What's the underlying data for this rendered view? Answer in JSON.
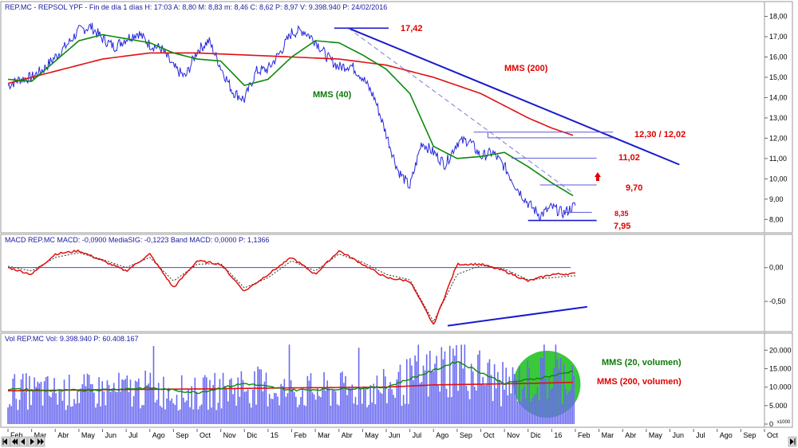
{
  "colors": {
    "price": "#2828e0",
    "ma40": "#0a8a0a",
    "ma200": "#e01010",
    "trend": "#1a1acc",
    "macd": "#e01010",
    "signal": "#333333",
    "volume": "#6a6af0",
    "zone": "#2ec62e",
    "level": "#5a5ad8",
    "panel_border": "#9a9a9a",
    "band": "#4040ff"
  },
  "nav_icons": [
    "first-icon",
    "prev-page-icon",
    "prev-icon",
    "next-icon",
    "next-page-icon",
    "last-icon"
  ],
  "chart_data": [
    {
      "type": "line",
      "title": "REP.MC - REPSOL YPF - Fin de día 1 días H: 17:03 A: 8,80 M: 8,83 m: 8,46 C: 8,62 P: 8,97 V: 9.398.940 P: 24/02/2016",
      "ylim": [
        7.5,
        18.1
      ],
      "y_ticks": [
        "18,00",
        "17,00",
        "16,00",
        "15,00",
        "14,00",
        "13,00",
        "12,00",
        "11,00",
        "10,00",
        "9,00",
        "8,00"
      ],
      "y_tick_values": [
        18,
        17,
        16,
        15,
        14,
        13,
        12,
        11,
        10,
        9,
        8
      ],
      "x_labels": [
        "Feb",
        "Mar",
        "Abr",
        "May",
        "Jun",
        "Jul",
        "Ago",
        "Sep",
        "Oct",
        "Nov",
        "Dic",
        "15",
        "Feb",
        "Mar",
        "Abr",
        "May",
        "Jun",
        "Jul",
        "Ago",
        "Sep",
        "Oct",
        "Nov",
        "Dic",
        "16",
        "Feb",
        "Mar",
        "Abr",
        "May",
        "Jun",
        "Jul",
        "Ago",
        "Sep",
        "Oct"
      ],
      "x_range": [
        0,
        32
      ],
      "series": [
        {
          "name": "price",
          "x": [
            0,
            0.5,
            1,
            1.5,
            2,
            2.5,
            3,
            3.5,
            4,
            4.5,
            5,
            5.5,
            6,
            6.5,
            7,
            7.5,
            8,
            8.5,
            9,
            9.5,
            10,
            10.5,
            11,
            11.5,
            12,
            12.5,
            13,
            13.5,
            14,
            14.5,
            15,
            15.5,
            16,
            16.5,
            17,
            17.5,
            18,
            18.5,
            19,
            19.5,
            20,
            20.5,
            21,
            21.5,
            22,
            22.5,
            23,
            23.5,
            24
          ],
          "y": [
            14.6,
            14.9,
            15.0,
            15.4,
            16.0,
            16.6,
            17.3,
            17.5,
            16.9,
            16.5,
            16.9,
            17.2,
            16.6,
            16.4,
            15.5,
            15.0,
            16.3,
            16.8,
            15.5,
            14.3,
            13.9,
            15.3,
            15.4,
            16.2,
            17.2,
            17.3,
            16.8,
            16.0,
            15.5,
            15.6,
            15.0,
            14.0,
            12.2,
            10.4,
            9.6,
            11.8,
            11.3,
            10.7,
            11.8,
            11.9,
            11.1,
            11.3,
            10.6,
            9.6,
            8.8,
            8.2,
            8.6,
            8.3,
            8.7
          ]
        },
        {
          "name": "MMS (40)",
          "x": [
            0,
            1,
            2,
            3,
            4,
            5,
            6,
            7,
            8,
            9,
            10,
            11,
            12,
            13,
            14,
            15,
            16,
            17,
            18,
            19,
            20,
            21,
            22,
            23,
            24
          ],
          "y": [
            14.9,
            14.8,
            15.8,
            16.8,
            17.1,
            16.9,
            16.7,
            16.2,
            15.9,
            15.8,
            14.6,
            14.9,
            16.0,
            16.8,
            16.7,
            16.1,
            15.4,
            14.2,
            11.6,
            11.0,
            11.1,
            11.3,
            10.6,
            9.8,
            9.1
          ]
        },
        {
          "name": "MMS (200)",
          "x": [
            0,
            2,
            4,
            6,
            8,
            10,
            12,
            14,
            16,
            17,
            18,
            19,
            20,
            21,
            22,
            23,
            24
          ],
          "y": [
            14.7,
            15.3,
            15.9,
            16.2,
            16.2,
            16.1,
            16.0,
            15.9,
            15.6,
            15.3,
            15.0,
            14.6,
            14.2,
            13.6,
            13.0,
            12.5,
            12.1
          ]
        }
      ],
      "levels": [
        {
          "label": "17,42",
          "value": 17.42
        },
        {
          "label": "12,30 / 12,02",
          "value": 12.3,
          "value2": 12.02
        },
        {
          "label": "11,02",
          "value": 11.02
        },
        {
          "label": "9,70",
          "value": 9.7
        },
        {
          "label": "8,35",
          "value": 8.35
        },
        {
          "label": "7,95",
          "value": 7.95
        }
      ],
      "annotations": [
        {
          "text": "MMS (200)",
          "color": "red"
        },
        {
          "text": "MMS (40)",
          "color": "green"
        }
      ]
    },
    {
      "type": "line",
      "title": "MACD REP.MC MACD: -0,0900 MediaSIG: -0,1223 Band MACD: 0,0000 P: 1,1366",
      "ylim": [
        -0.9,
        0.35
      ],
      "y_ticks": [
        "0,00",
        "-0,50"
      ],
      "y_tick_values": [
        0,
        -0.5
      ],
      "band": 0,
      "series": [
        {
          "name": "MACD",
          "x": [
            0,
            1,
            2,
            3,
            4,
            5,
            6,
            7,
            8,
            9,
            10,
            11,
            12,
            13,
            14,
            15,
            16,
            17,
            18,
            19,
            20,
            21,
            22,
            23,
            24
          ],
          "y": [
            0.0,
            -0.1,
            0.2,
            0.25,
            0.1,
            -0.05,
            0.2,
            -0.3,
            0.1,
            0.05,
            -0.35,
            -0.1,
            0.15,
            -0.1,
            0.25,
            0.05,
            -0.15,
            -0.2,
            -0.85,
            0.05,
            0.05,
            -0.05,
            -0.2,
            -0.1,
            -0.09
          ]
        },
        {
          "name": "MediaSIG",
          "x": [
            0,
            1,
            2,
            3,
            4,
            5,
            6,
            7,
            8,
            9,
            10,
            11,
            12,
            13,
            14,
            15,
            16,
            17,
            18,
            19,
            20,
            21,
            22,
            23,
            24
          ],
          "y": [
            0.02,
            -0.05,
            0.15,
            0.22,
            0.12,
            0.0,
            0.15,
            -0.2,
            0.05,
            0.06,
            -0.3,
            -0.15,
            0.1,
            -0.05,
            0.2,
            0.08,
            -0.1,
            -0.18,
            -0.8,
            -0.1,
            0.03,
            -0.02,
            -0.18,
            -0.15,
            -0.12
          ]
        }
      ]
    },
    {
      "type": "bar",
      "title": "Vol REP.MC Vol: 9.398.940 P: 60.408.167",
      "ylim": [
        0,
        22000
      ],
      "y_ticks": [
        "20.000",
        "15.000",
        "10.000",
        "5.000",
        "0"
      ],
      "y_tick_values": [
        20000,
        15000,
        10000,
        5000,
        0
      ],
      "y_unit": "x1000",
      "series": [
        {
          "name": "MMS (20, volumen)",
          "x": [
            0,
            2,
            4,
            6,
            8,
            10,
            12,
            14,
            16,
            18,
            19,
            20,
            21,
            22,
            23,
            24
          ],
          "y": [
            9500,
            9000,
            9300,
            9800,
            8500,
            11000,
            9200,
            9500,
            10000,
            14500,
            17000,
            14000,
            11000,
            12000,
            13000,
            14500
          ]
        },
        {
          "name": "MMS (200, volumen)",
          "x": [
            0,
            4,
            8,
            12,
            16,
            18,
            20,
            22,
            24
          ],
          "y": [
            9000,
            9300,
            9500,
            9800,
            10000,
            10600,
            10800,
            11000,
            11300
          ]
        }
      ],
      "annotations": [
        {
          "text": "MMS (20, volumen)",
          "color": "green"
        },
        {
          "text": "MMS (200, volumen)",
          "color": "red"
        }
      ]
    }
  ]
}
